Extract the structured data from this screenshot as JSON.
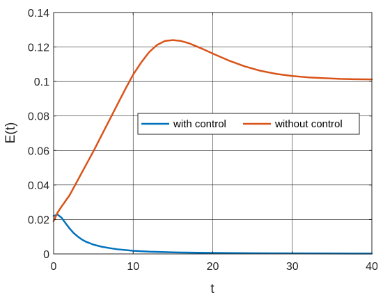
{
  "chart_data": {
    "type": "line",
    "title": "",
    "xlabel": "t",
    "ylabel": "E(t)",
    "xlim": [
      0,
      40
    ],
    "ylim": [
      0,
      0.14
    ],
    "xticks": [
      0,
      10,
      20,
      30,
      40
    ],
    "yticks": [
      0,
      0.02,
      0.04,
      0.06,
      0.08,
      0.1,
      0.12,
      0.14
    ],
    "xtick_labels": [
      "0",
      "10",
      "20",
      "30",
      "40"
    ],
    "ytick_labels": [
      "0",
      "0.02",
      "0.04",
      "0.06",
      "0.08",
      "0.1",
      "0.12",
      "0.14"
    ],
    "grid": true,
    "legend_position": "center-right",
    "series": [
      {
        "name": "with control",
        "color": "#0072BD",
        "x": [
          0,
          0.5,
          1,
          1.5,
          2,
          2.5,
          3,
          3.5,
          4,
          5,
          6,
          7,
          8,
          10,
          12,
          15,
          20,
          25,
          30,
          35,
          40
        ],
        "y": [
          0.022,
          0.0228,
          0.021,
          0.0178,
          0.0148,
          0.0122,
          0.0102,
          0.0085,
          0.0072,
          0.0054,
          0.0042,
          0.0034,
          0.0027,
          0.0018,
          0.0013,
          0.0009,
          0.0006,
          0.0004,
          0.0003,
          0.00025,
          0.0002
        ]
      },
      {
        "name": "without control",
        "color": "#D95319",
        "x": [
          0,
          0.5,
          1,
          2,
          3,
          4,
          5,
          6,
          7,
          8,
          9,
          10,
          11,
          12,
          13,
          14,
          15,
          16,
          17,
          18,
          19,
          20,
          22,
          24,
          26,
          28,
          30,
          32,
          34,
          36,
          38,
          40
        ],
        "y": [
          0.019,
          0.024,
          0.0275,
          0.034,
          0.0425,
          0.051,
          0.0595,
          0.0685,
          0.0775,
          0.0865,
          0.0955,
          0.104,
          0.111,
          0.117,
          0.1212,
          0.1235,
          0.124,
          0.1235,
          0.1222,
          0.1203,
          0.1183,
          0.1162,
          0.1122,
          0.1088,
          0.1062,
          0.1044,
          0.1032,
          0.1024,
          0.1019,
          0.1015,
          0.1013,
          0.1012
        ]
      }
    ]
  }
}
